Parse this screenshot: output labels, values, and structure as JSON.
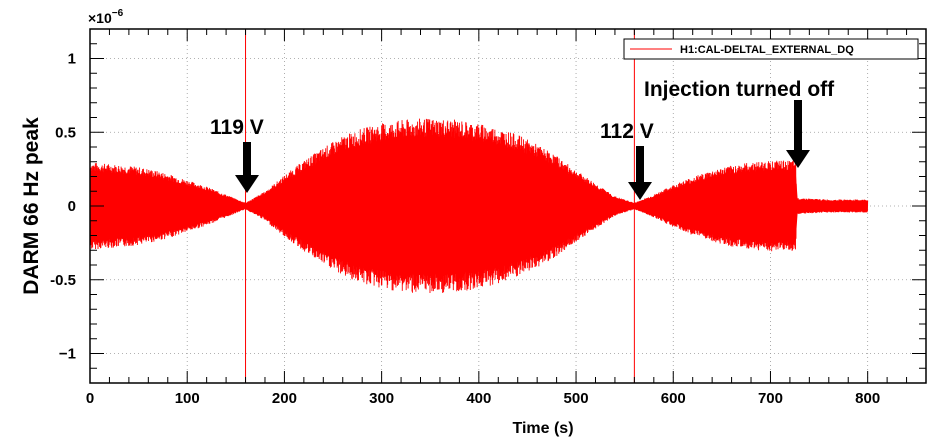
{
  "chart_data": {
    "type": "line",
    "xlabel": "Time (s)",
    "ylabel": "DARM 66 Hz peak",
    "y_exponent_label": "×10",
    "y_exponent_power": "−6",
    "xlim": [
      0,
      860
    ],
    "ylim": [
      -1.2,
      1.2
    ],
    "grid": true,
    "x_ticks": [
      0,
      100,
      200,
      300,
      400,
      500,
      600,
      700,
      800
    ],
    "x_tick_labels": [
      "0",
      "100",
      "200",
      "300",
      "400",
      "500",
      "600",
      "700",
      "800"
    ],
    "y_ticks": [
      1,
      0.5,
      0,
      -0.5,
      -1
    ],
    "y_tick_labels": [
      "1",
      "0.5",
      "0",
      "-0.5",
      "−1"
    ],
    "legend": {
      "position": "top-right",
      "entries": [
        {
          "label": "H1:CAL-DELTAL_EXTERNAL_DQ",
          "color": "#ff0000"
        }
      ]
    },
    "series": [
      {
        "name": "H1:CAL-DELTAL_EXTERNAL_DQ",
        "color": "#ff0000",
        "envelope": {
          "t": [
            0,
            20,
            40,
            60,
            80,
            100,
            120,
            140,
            160,
            180,
            200,
            220,
            240,
            260,
            280,
            300,
            320,
            340,
            360,
            380,
            400,
            420,
            440,
            460,
            480,
            500,
            520,
            540,
            560,
            580,
            600,
            620,
            640,
            660,
            680,
            700,
            720,
            726,
            727,
            760,
            800
          ],
          "amp": [
            0.27,
            0.26,
            0.25,
            0.23,
            0.2,
            0.16,
            0.12,
            0.07,
            0.02,
            0.09,
            0.19,
            0.28,
            0.36,
            0.43,
            0.48,
            0.51,
            0.53,
            0.54,
            0.54,
            0.53,
            0.51,
            0.48,
            0.44,
            0.38,
            0.31,
            0.22,
            0.14,
            0.06,
            0.02,
            0.07,
            0.13,
            0.18,
            0.22,
            0.25,
            0.27,
            0.28,
            0.28,
            0.28,
            0.05,
            0.04,
            0.04
          ]
        },
        "x_range": [
          0,
          800
        ]
      }
    ],
    "vertical_lines": [
      {
        "x": 160,
        "color": "#ff0000"
      },
      {
        "x": 560,
        "color": "#ff0000"
      }
    ],
    "annotations": [
      {
        "text": "119 V",
        "arrow_x": 160,
        "arrow_y": 0.05
      },
      {
        "text": "112 V",
        "arrow_x": 560,
        "arrow_y": 0.05
      },
      {
        "text": "Injection turned off",
        "arrow_x": 726,
        "arrow_y": 0.3
      }
    ]
  }
}
